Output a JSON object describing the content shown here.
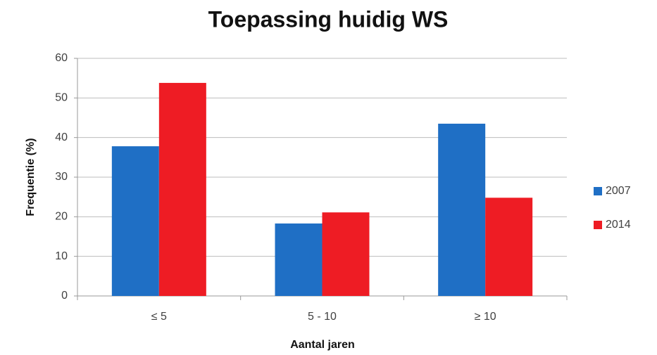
{
  "chart_data": {
    "type": "bar",
    "title": "Toepassing huidig WS",
    "y_label": "Frequentie (%)",
    "x_label": "Aantal jaren",
    "categories": [
      "≤ 5",
      "5 - 10",
      "≥ 10"
    ],
    "series": [
      {
        "name": "2007",
        "color": "#1f6fc5",
        "values": [
          37.8,
          18.3,
          43.5
        ]
      },
      {
        "name": "2014",
        "color": "#ee1c24",
        "values": [
          53.8,
          21.1,
          24.8
        ]
      }
    ],
    "ylim": [
      0,
      60
    ],
    "yticks": [
      0,
      10,
      20,
      30,
      40,
      50,
      60
    ],
    "grid": true,
    "legend": "right"
  }
}
